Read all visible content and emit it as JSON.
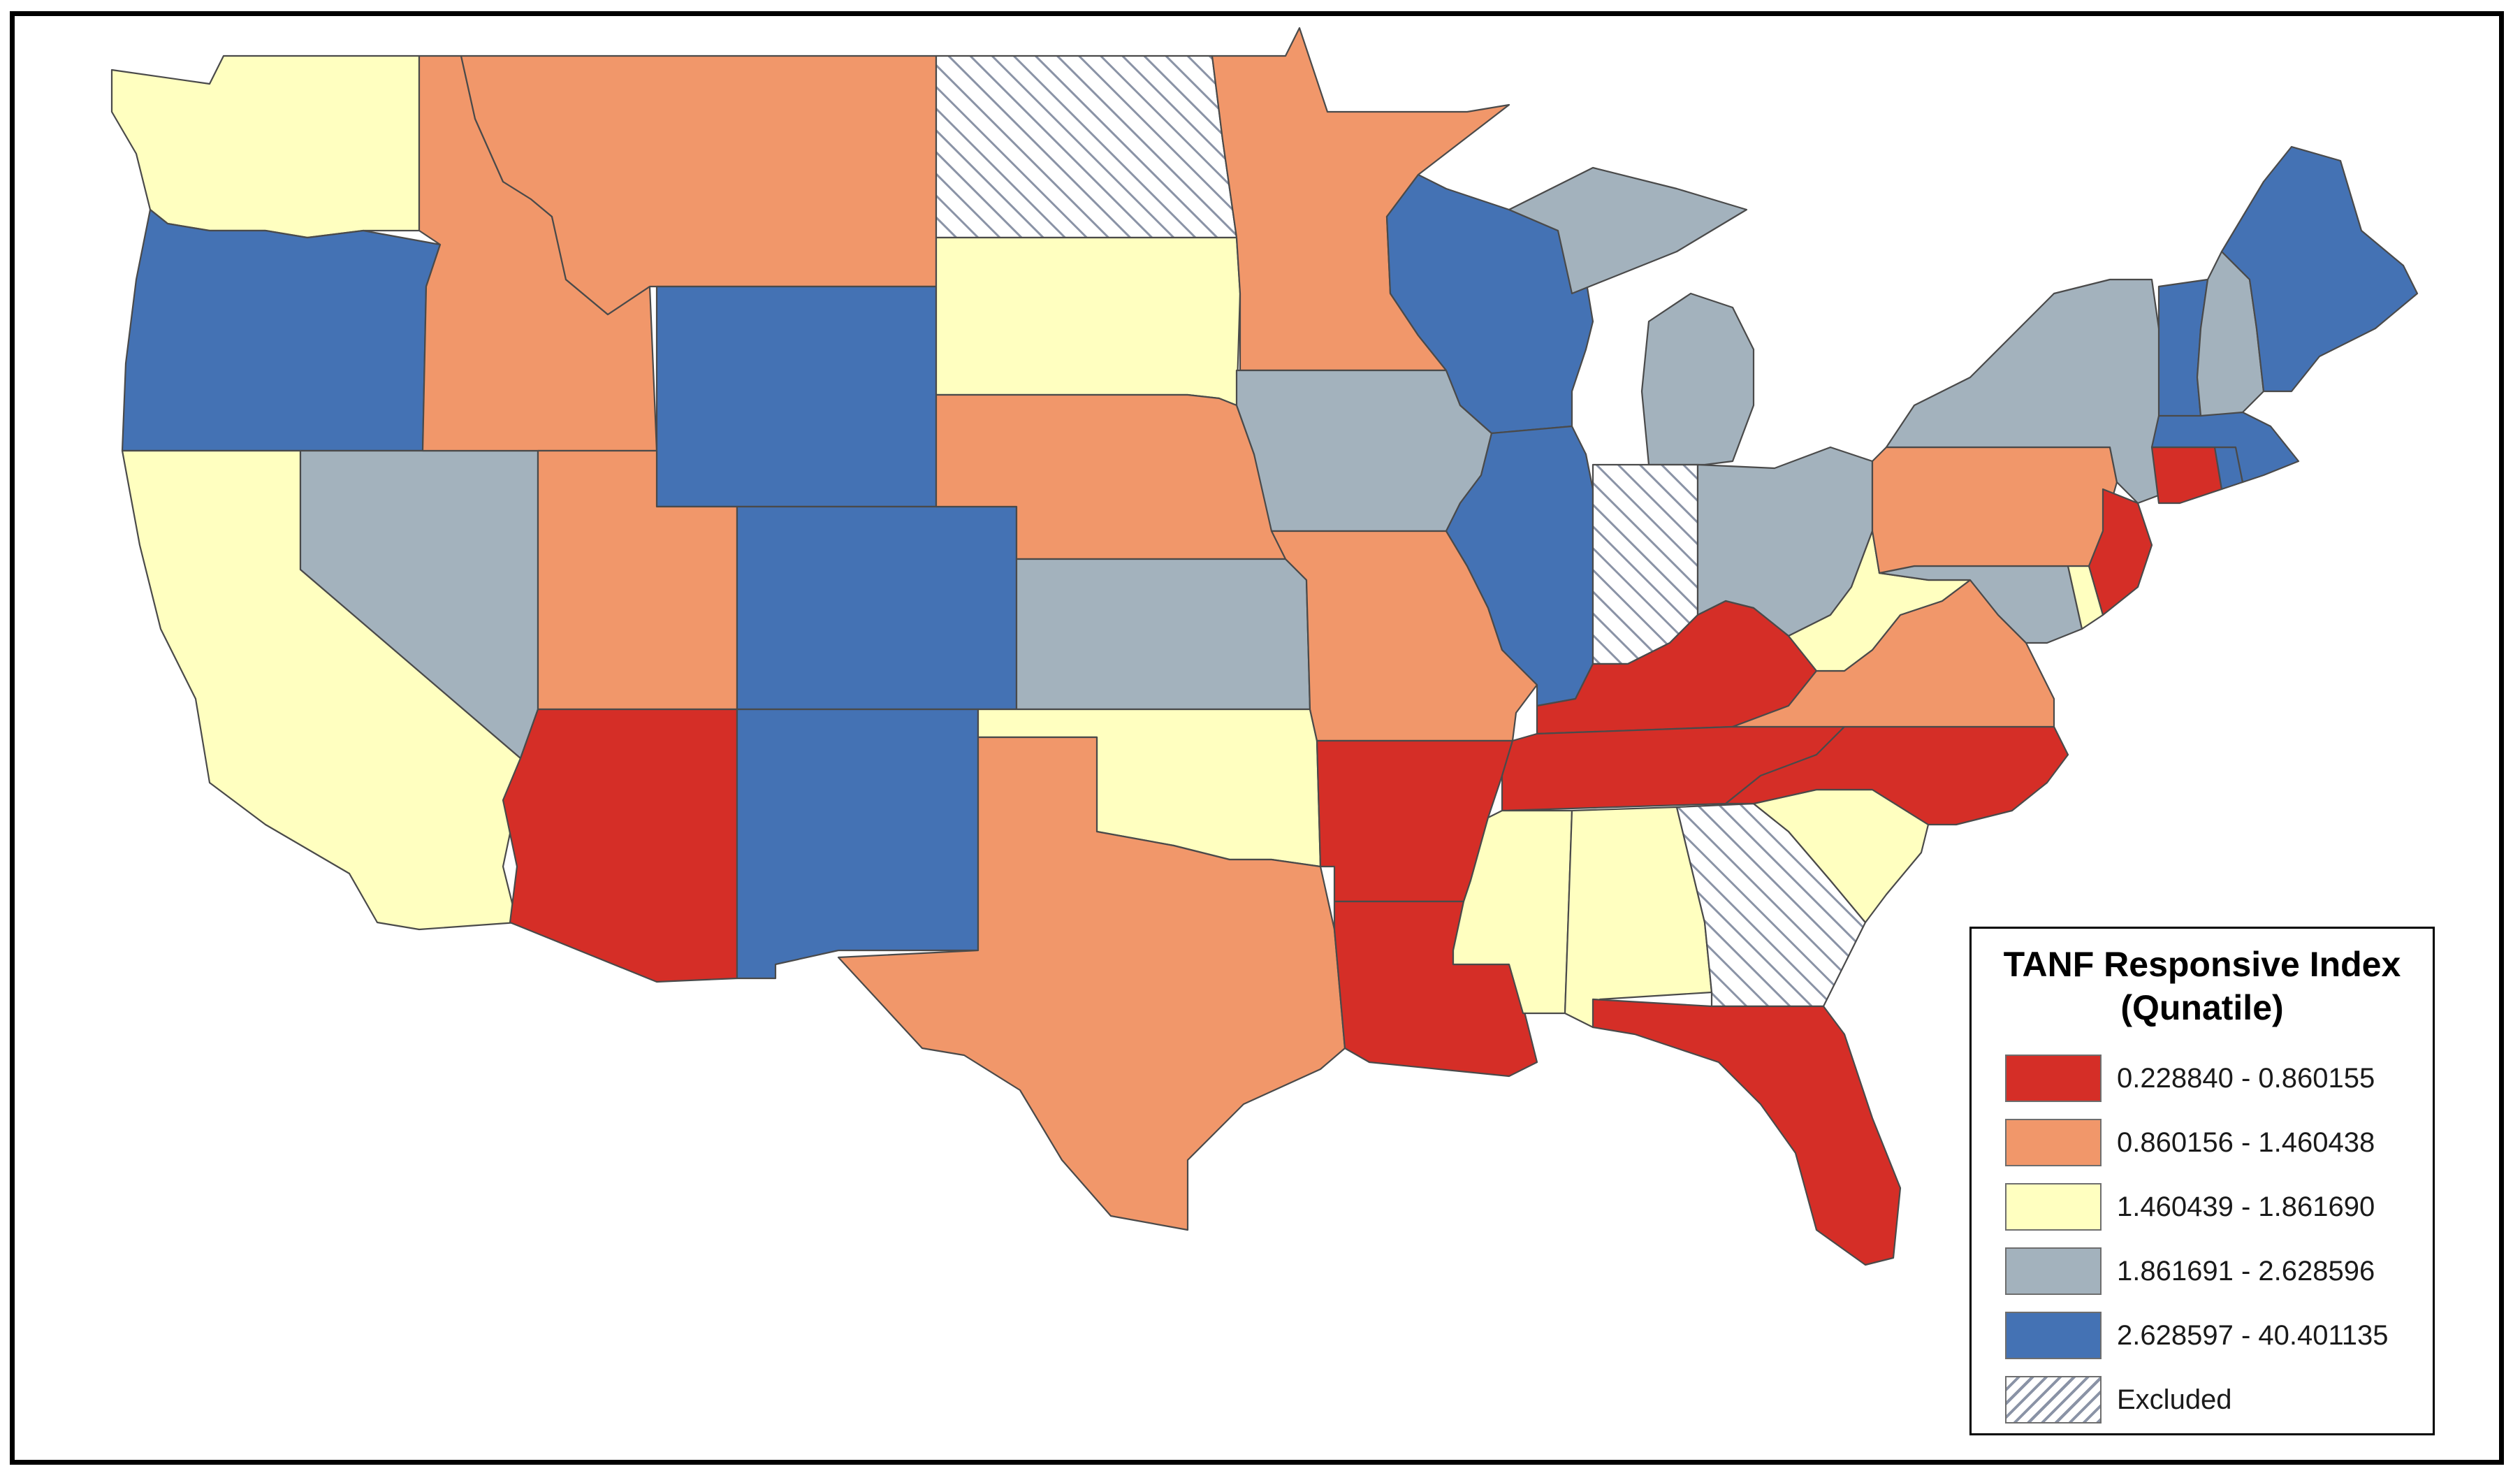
{
  "legend": {
    "title_line1": "TANF Responsive Index",
    "title_line2": "(Qunatile)",
    "classes": [
      {
        "label": "0.228840 - 0.860155",
        "color": "#d52e27"
      },
      {
        "label": "0.860156 - 1.460438",
        "color": "#f1976a"
      },
      {
        "label": "1.460439 - 1.861690",
        "color": "#ffffc0"
      },
      {
        "label": "1.861691 - 2.628596",
        "color": "#a3b2bd"
      },
      {
        "label": "2.628597 - 40.401135",
        "color": "#4472b4"
      },
      {
        "label": "Excluded",
        "color": "hatch"
      }
    ]
  },
  "states": {
    "WA": 2,
    "OR": 4,
    "CA": 2,
    "NV": 3,
    "ID": 1,
    "MT": 1,
    "WY": 4,
    "UT": 1,
    "AZ": 0,
    "CO": 4,
    "NM": 4,
    "ND": 5,
    "SD": 2,
    "NE": 1,
    "KS": 3,
    "OK": 2,
    "TX": 1,
    "MN": 1,
    "IA": 3,
    "MO": 1,
    "AR": 0,
    "LA": 0,
    "WI": 4,
    "IL": 4,
    "MI": 3,
    "IN": 5,
    "OH": 3,
    "KY": 0,
    "TN": 0,
    "MS": 2,
    "AL": 2,
    "GA": 5,
    "FL": 0,
    "SC": 2,
    "NC": 0,
    "VA": 1,
    "WV": 2,
    "MD": 3,
    "DE": 2,
    "PA": 1,
    "NJ": 0,
    "NY": 3,
    "CT": 0,
    "RI": 4,
    "MA": 4,
    "VT": 4,
    "NH": 3,
    "ME": 4
  }
}
